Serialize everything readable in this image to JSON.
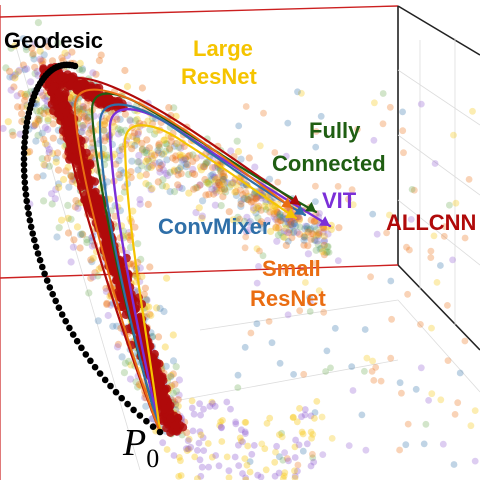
{
  "labels": {
    "geodesic": "Geodesic",
    "large_resnet_line1": "Large",
    "large_resnet_line2": "ResNet",
    "fully_connected_line1": "Fully",
    "fully_connected_line2": "Connected",
    "vit": "VIT",
    "convmixer": "ConvMixer",
    "allcnn": "ALLCNN",
    "small_resnet_line1": "Small",
    "small_resnet_line2": "ResNet",
    "p0_base": "P",
    "p0_sub": "0"
  },
  "colors": {
    "geodesic": "#000000",
    "large_resnet": "#f5c400",
    "fully_connected": "#1f5e12",
    "vit": "#7b2fd8",
    "convmixer": "#2f6fa8",
    "allcnn": "#b00a0a",
    "small_resnet": "#ea6d12",
    "axis_red": "#cc2020",
    "frame": "#222222"
  }
}
